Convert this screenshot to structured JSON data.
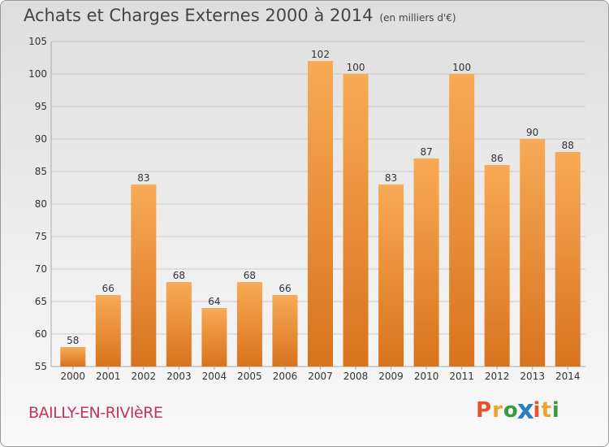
{
  "header": {
    "title": "Achats et Charges Externes 2000 à 2014",
    "subtitle": "(en milliers d'€)"
  },
  "footer": {
    "place": "BAILLY-EN-RIVIèRE",
    "logo": "Proxiti",
    "logo_colors": [
      "#e8522d",
      "#f2a12b",
      "#3a9a3e",
      "#2a7fc0",
      "#e8522d",
      "#f2a12b",
      "#3a9a3e"
    ]
  },
  "colors": {
    "bar_light": "#f8aa55",
    "bar_dark": "#d8731e",
    "grid": "#c8c8c8",
    "axis_text": "#333333"
  },
  "chart_data": {
    "type": "bar",
    "title": "Achats et Charges Externes 2000 à 2014",
    "subtitle": "(en milliers d'€)",
    "categories": [
      "2000",
      "2001",
      "2002",
      "2003",
      "2004",
      "2005",
      "2006",
      "2007",
      "2008",
      "2009",
      "2010",
      "2011",
      "2012",
      "2013",
      "2014"
    ],
    "values": [
      58,
      66,
      83,
      68,
      64,
      68,
      66,
      102,
      100,
      83,
      87,
      100,
      86,
      90,
      88
    ],
    "ylim": [
      55,
      105
    ],
    "yticks": [
      55,
      60,
      65,
      70,
      75,
      80,
      85,
      90,
      95,
      100,
      105
    ],
    "grid": true,
    "xlabel": "",
    "ylabel": ""
  }
}
